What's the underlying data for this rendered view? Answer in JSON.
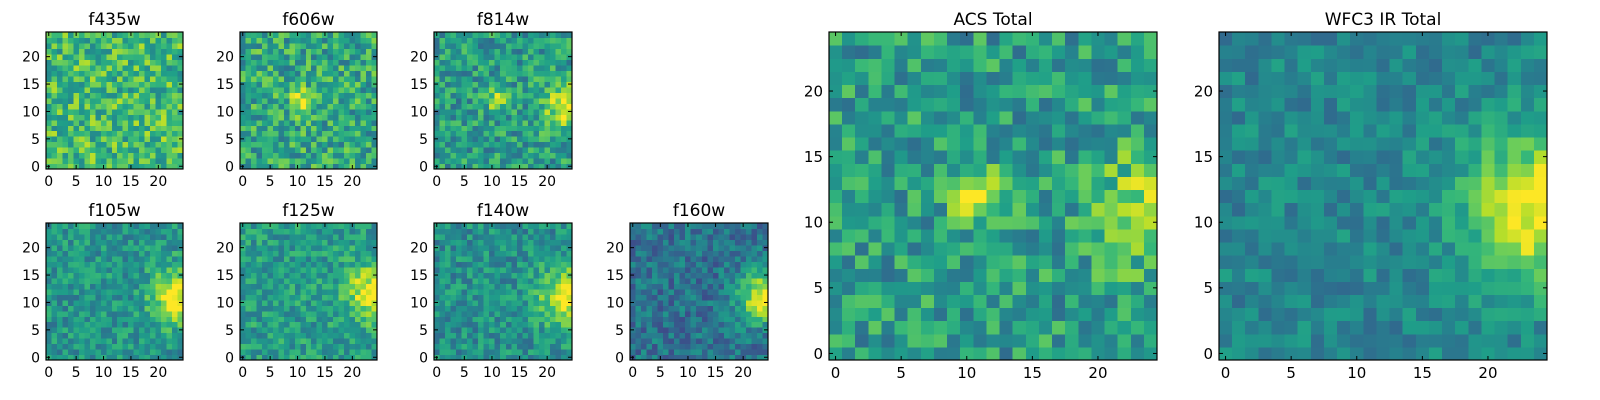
{
  "figure": {
    "background": "#ffffff",
    "colormap": "viridis"
  },
  "chart_data": [
    {
      "type": "heatmap",
      "id": "f435w",
      "title": "f435w",
      "grid_size": 25,
      "xlim": [
        0,
        24
      ],
      "ylim": [
        0,
        24
      ],
      "xticks": [
        0,
        5,
        10,
        15,
        20
      ],
      "yticks": [
        0,
        5,
        10,
        15,
        20
      ],
      "value_range": [
        0,
        1
      ],
      "pattern": {
        "base": 0.68,
        "noise": 0.22,
        "seed": 11,
        "blobs": []
      }
    },
    {
      "type": "heatmap",
      "id": "f606w",
      "title": "f606w",
      "grid_size": 25,
      "xlim": [
        0,
        24
      ],
      "ylim": [
        0,
        24
      ],
      "xticks": [
        0,
        5,
        10,
        15,
        20
      ],
      "yticks": [
        0,
        5,
        10,
        15,
        20
      ],
      "value_range": [
        0,
        1
      ],
      "pattern": {
        "base": 0.6,
        "noise": 0.22,
        "seed": 23,
        "blobs": [
          {
            "x": 11,
            "y": 12,
            "amp": 0.38,
            "sigma": 1.6
          }
        ]
      }
    },
    {
      "type": "heatmap",
      "id": "f814w",
      "title": "f814w",
      "grid_size": 25,
      "xlim": [
        0,
        24
      ],
      "ylim": [
        0,
        24
      ],
      "xticks": [
        0,
        5,
        10,
        15,
        20
      ],
      "yticks": [
        0,
        5,
        10,
        15,
        20
      ],
      "value_range": [
        0,
        1
      ],
      "pattern": {
        "base": 0.55,
        "noise": 0.2,
        "seed": 37,
        "blobs": [
          {
            "x": 11,
            "y": 12,
            "amp": 0.32,
            "sigma": 1.4
          },
          {
            "x": 24,
            "y": 11,
            "amp": 0.45,
            "sigma": 3.0
          }
        ]
      }
    },
    {
      "type": "heatmap",
      "id": "f105w",
      "title": "f105w",
      "grid_size": 25,
      "xlim": [
        0,
        24
      ],
      "ylim": [
        0,
        24
      ],
      "xticks": [
        0,
        5,
        10,
        15,
        20
      ],
      "yticks": [
        0,
        5,
        10,
        15,
        20
      ],
      "value_range": [
        0,
        1
      ],
      "pattern": {
        "base": 0.52,
        "noise": 0.16,
        "seed": 41,
        "blobs": [
          {
            "x": 24,
            "y": 11,
            "amp": 0.5,
            "sigma": 3.5
          }
        ]
      }
    },
    {
      "type": "heatmap",
      "id": "f125w",
      "title": "f125w",
      "grid_size": 25,
      "xlim": [
        0,
        24
      ],
      "ylim": [
        0,
        24
      ],
      "xticks": [
        0,
        5,
        10,
        15,
        20
      ],
      "yticks": [
        0,
        5,
        10,
        15,
        20
      ],
      "value_range": [
        0,
        1
      ],
      "pattern": {
        "base": 0.55,
        "noise": 0.16,
        "seed": 53,
        "blobs": [
          {
            "x": 24,
            "y": 12,
            "amp": 0.45,
            "sigma": 3.5
          }
        ]
      }
    },
    {
      "type": "heatmap",
      "id": "f140w",
      "title": "f140w",
      "grid_size": 25,
      "xlim": [
        0,
        24
      ],
      "ylim": [
        0,
        24
      ],
      "xticks": [
        0,
        5,
        10,
        15,
        20
      ],
      "yticks": [
        0,
        5,
        10,
        15,
        20
      ],
      "value_range": [
        0,
        1
      ],
      "pattern": {
        "base": 0.5,
        "noise": 0.16,
        "seed": 67,
        "blobs": [
          {
            "x": 24,
            "y": 11,
            "amp": 0.5,
            "sigma": 3.8
          }
        ]
      }
    },
    {
      "type": "heatmap",
      "id": "f160w",
      "title": "f160w",
      "grid_size": 25,
      "xlim": [
        0,
        24
      ],
      "ylim": [
        0,
        24
      ],
      "xticks": [
        0,
        5,
        10,
        15,
        20
      ],
      "yticks": [
        0,
        5,
        10,
        15,
        20
      ],
      "value_range": [
        0,
        1
      ],
      "pattern": {
        "base": 0.38,
        "noise": 0.15,
        "seed": 79,
        "blobs": [
          {
            "x": 24,
            "y": 11,
            "amp": 0.65,
            "sigma": 3.2
          }
        ]
      }
    },
    {
      "type": "heatmap",
      "id": "acs-total",
      "title": "ACS Total",
      "grid_size": 25,
      "xlim": [
        0,
        24
      ],
      "ylim": [
        0,
        24
      ],
      "xticks": [
        0,
        5,
        10,
        15,
        20
      ],
      "yticks": [
        0,
        5,
        10,
        15,
        20
      ],
      "value_range": [
        0,
        1
      ],
      "pattern": {
        "base": 0.55,
        "noise": 0.2,
        "seed": 97,
        "blobs": [
          {
            "x": 11,
            "y": 12,
            "amp": 0.4,
            "sigma": 1.5
          },
          {
            "x": 24,
            "y": 11,
            "amp": 0.35,
            "sigma": 3.0
          }
        ]
      }
    },
    {
      "type": "heatmap",
      "id": "wfc3-ir-total",
      "title": "WFC3 IR Total",
      "grid_size": 25,
      "xlim": [
        0,
        24
      ],
      "ylim": [
        0,
        24
      ],
      "xticks": [
        0,
        5,
        10,
        15,
        20
      ],
      "yticks": [
        0,
        5,
        10,
        15,
        20
      ],
      "value_range": [
        0,
        1
      ],
      "pattern": {
        "base": 0.46,
        "noise": 0.12,
        "seed": 109,
        "blobs": [
          {
            "x": 24,
            "y": 11,
            "amp": 0.55,
            "sigma": 4.0
          }
        ]
      }
    }
  ]
}
